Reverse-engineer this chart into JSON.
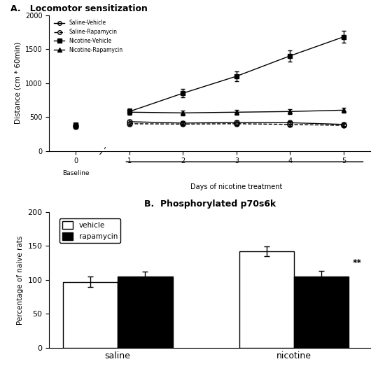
{
  "panel_A_title": "A.   Locomotor sensitization",
  "panel_B_title": "B.  Phosphorylated p70s6k",
  "lineplot": {
    "xlabel": "Days of nicotine treatment",
    "ylabel": "Distance (cm * 60min)",
    "ylim": [
      0,
      2000
    ],
    "yticks": [
      0,
      500,
      1000,
      1500,
      2000
    ],
    "ytick_labels": [
      "0",
      "500",
      "1000",
      "1500",
      "2000"
    ],
    "baseline_x": 0,
    "days_x": [
      1,
      2,
      3,
      4,
      5
    ],
    "series": [
      {
        "label": "Saline-Vehicle",
        "baseline": 380,
        "values": [
          430,
          410,
          420,
          415,
          390
        ],
        "errors": [
          30,
          25,
          30,
          28,
          25
        ],
        "marker": "o",
        "fillstyle": "none",
        "color": "#000000",
        "linestyle": "-"
      },
      {
        "label": "Saline-Rapamycin",
        "baseline": 360,
        "values": [
          400,
          395,
          400,
          390,
          375
        ],
        "errors": [
          28,
          22,
          25,
          25,
          20
        ],
        "marker": "o",
        "fillstyle": "none",
        "color": "#000000",
        "linestyle": "--"
      },
      {
        "label": "Nicotine-Vehicle",
        "baseline": 390,
        "values": [
          580,
          850,
          1100,
          1400,
          1680
        ],
        "errors": [
          40,
          60,
          70,
          80,
          90
        ],
        "marker": "s",
        "fillstyle": "full",
        "color": "#000000",
        "linestyle": "-"
      },
      {
        "label": "Nicotine-Rapamycin",
        "baseline": 370,
        "values": [
          570,
          560,
          570,
          580,
          600
        ],
        "errors": [
          35,
          35,
          35,
          35,
          35
        ],
        "marker": "^",
        "fillstyle": "full",
        "color": "#000000",
        "linestyle": "-"
      }
    ]
  },
  "barplot": {
    "groups": [
      "saline",
      "nicotine"
    ],
    "categories": [
      "vehicle",
      "rapamycin"
    ],
    "colors": [
      "#ffffff",
      "#000000"
    ],
    "edgecolors": [
      "#000000",
      "#000000"
    ],
    "ylabel": "Percentage of naive rats",
    "ylim": [
      0,
      200
    ],
    "yticks": [
      0,
      50,
      100,
      150,
      200
    ],
    "values": {
      "saline_vehicle": 97,
      "saline_rapamycin": 105,
      "nicotine_vehicle": 142,
      "nicotine_rapamycin": 105
    },
    "errors": {
      "saline_vehicle": 8,
      "saline_rapamycin": 7,
      "nicotine_vehicle": 7,
      "nicotine_rapamycin": 8
    },
    "significance": {
      "nicotine_rapamycin": "**"
    }
  },
  "bg_color": "#ffffff"
}
